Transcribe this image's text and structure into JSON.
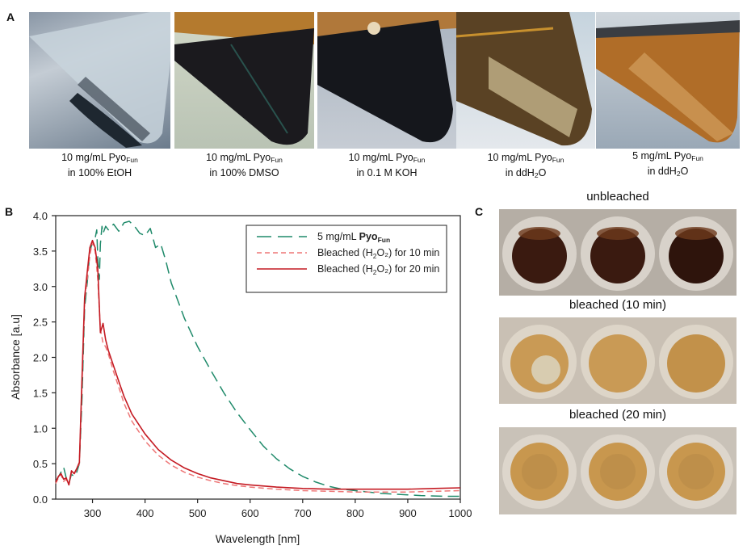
{
  "panels": {
    "a": {
      "letter": "A",
      "tubes": [
        {
          "line1_prefix": "10 mg/mL Pyo",
          "line1_sub": "Fun",
          "line2_prefix": "in 100% EtOH",
          "line2_sub": "",
          "line2_suffix": ""
        },
        {
          "line1_prefix": "10 mg/mL Pyo",
          "line1_sub": "Fun",
          "line2_prefix": "in 100% DMSO",
          "line2_sub": "",
          "line2_suffix": ""
        },
        {
          "line1_prefix": "10 mg/mL Pyo",
          "line1_sub": "Fun",
          "line2_prefix": "in 0.1 M KOH",
          "line2_sub": "",
          "line2_suffix": ""
        },
        {
          "line1_prefix": "10 mg/mL Pyo",
          "line1_sub": "Fun",
          "line2_prefix": "in ddH",
          "line2_sub": "2",
          "line2_suffix": "O"
        },
        {
          "line1_prefix": "5 mg/mL Pyo",
          "line1_sub": "Fun",
          "line2_prefix": "in ddH",
          "line2_sub": "2",
          "line2_suffix": "O"
        }
      ]
    },
    "b": {
      "letter": "B"
    },
    "c": {
      "letter": "C",
      "rows": [
        {
          "title": "unbleached",
          "color": "#3a1a10"
        },
        {
          "title": "bleached (10 min)",
          "color": "#c99a55"
        },
        {
          "title": "bleached (20 min)",
          "color": "#c8974e"
        }
      ]
    }
  },
  "chart_data": {
    "type": "line",
    "title": "",
    "xlabel": "Wavelength [nm]",
    "ylabel": "Absorbance [a.u]",
    "xlim": [
      230,
      1000
    ],
    "ylim": [
      0.0,
      4.0
    ],
    "xticks": [
      300,
      400,
      500,
      600,
      700,
      800,
      900,
      1000
    ],
    "yticks": [
      "0.0",
      "0.5",
      "1.0",
      "1.5",
      "2.0",
      "2.5",
      "3.0",
      "3.5",
      "4.0"
    ],
    "grid": false,
    "legend_position": "top-right",
    "series": [
      {
        "name_prefix": "5 mg/mL ",
        "name_bold": "Pyo",
        "name_sub": "Fun",
        "name_suffix": "",
        "color": "#1f8a6a",
        "style": "long-dash",
        "x": [
          230,
          240,
          245,
          250,
          255,
          260,
          265,
          270,
          275,
          280,
          285,
          290,
          295,
          300,
          305,
          308,
          310,
          313,
          315,
          318,
          320,
          325,
          330,
          340,
          350,
          360,
          370,
          380,
          390,
          400,
          410,
          420,
          430,
          440,
          450,
          475,
          500,
          525,
          550,
          575,
          600,
          625,
          650,
          675,
          700,
          725,
          750,
          775,
          800,
          825,
          850,
          875,
          900,
          925,
          950,
          975,
          1000
        ],
        "y": [
          0.25,
          0.38,
          0.45,
          0.3,
          0.22,
          0.35,
          0.32,
          0.38,
          0.5,
          1.4,
          2.7,
          3.05,
          3.5,
          3.62,
          3.68,
          3.8,
          3.4,
          3.1,
          3.6,
          3.85,
          3.75,
          3.85,
          3.8,
          3.88,
          3.78,
          3.9,
          3.92,
          3.85,
          3.75,
          3.72,
          3.82,
          3.55,
          3.6,
          3.35,
          3.05,
          2.55,
          2.15,
          1.82,
          1.5,
          1.22,
          0.98,
          0.75,
          0.57,
          0.43,
          0.32,
          0.24,
          0.18,
          0.14,
          0.12,
          0.1,
          0.08,
          0.07,
          0.06,
          0.05,
          0.045,
          0.04,
          0.04
        ]
      },
      {
        "name_prefix": "Bleached (H",
        "name_bold": "",
        "name_sub": "2",
        "name_suffix": "O₂) for 10 min",
        "color": "#ee7777",
        "style": "short-dash",
        "x": [
          230,
          235,
          240,
          245,
          250,
          255,
          260,
          265,
          270,
          275,
          280,
          285,
          290,
          295,
          300,
          305,
          310,
          315,
          320,
          325,
          330,
          340,
          350,
          360,
          375,
          400,
          425,
          450,
          475,
          500,
          525,
          550,
          575,
          600,
          650,
          700,
          750,
          800,
          850,
          900,
          950,
          1000
        ],
        "y": [
          0.22,
          0.3,
          0.35,
          0.25,
          0.28,
          0.2,
          0.38,
          0.35,
          0.42,
          0.5,
          1.6,
          2.8,
          3.1,
          3.45,
          3.62,
          3.5,
          3.1,
          2.4,
          2.2,
          2.15,
          2.05,
          1.8,
          1.58,
          1.35,
          1.1,
          0.82,
          0.62,
          0.48,
          0.38,
          0.31,
          0.26,
          0.22,
          0.19,
          0.17,
          0.14,
          0.12,
          0.11,
          0.1,
          0.1,
          0.1,
          0.11,
          0.12
        ]
      },
      {
        "name_prefix": "Bleached (H",
        "name_bold": "",
        "name_sub": "2",
        "name_suffix": "O₂) for 20 min",
        "color": "#c41a22",
        "style": "solid",
        "x": [
          230,
          235,
          240,
          245,
          250,
          255,
          260,
          265,
          270,
          275,
          280,
          285,
          290,
          295,
          300,
          305,
          310,
          315,
          320,
          325,
          330,
          340,
          350,
          360,
          375,
          400,
          425,
          450,
          475,
          500,
          525,
          550,
          575,
          600,
          650,
          700,
          750,
          800,
          850,
          900,
          950,
          1000
        ],
        "y": [
          0.24,
          0.32,
          0.36,
          0.28,
          0.3,
          0.2,
          0.4,
          0.36,
          0.43,
          0.52,
          1.7,
          2.85,
          3.2,
          3.55,
          3.65,
          3.55,
          3.25,
          2.35,
          2.48,
          2.25,
          2.1,
          1.88,
          1.66,
          1.45,
          1.2,
          0.92,
          0.7,
          0.55,
          0.44,
          0.36,
          0.3,
          0.26,
          0.22,
          0.2,
          0.17,
          0.15,
          0.14,
          0.14,
          0.14,
          0.14,
          0.15,
          0.16
        ]
      }
    ]
  }
}
